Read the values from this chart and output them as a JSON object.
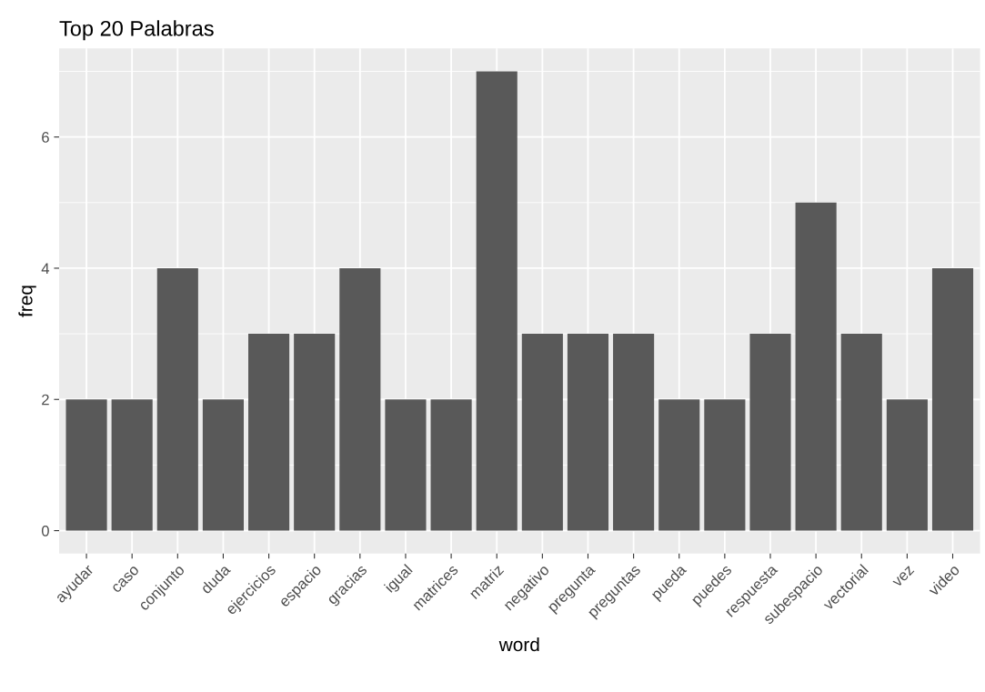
{
  "chart_data": {
    "type": "bar",
    "title": "Top 20 Palabras",
    "xlabel": "word",
    "ylabel": "freq",
    "categories": [
      "ayudar",
      "caso",
      "conjunto",
      "duda",
      "ejercicios",
      "espacio",
      "gracias",
      "igual",
      "matrices",
      "matriz",
      "negativo",
      "pregunta",
      "preguntas",
      "pueda",
      "puedes",
      "respuesta",
      "subespacio",
      "vectorial",
      "vez",
      "video"
    ],
    "values": [
      2,
      2,
      4,
      2,
      3,
      3,
      4,
      2,
      2,
      7,
      3,
      3,
      3,
      2,
      2,
      3,
      5,
      3,
      2,
      4
    ],
    "color": "#595959",
    "ylim": [
      -0.35,
      7.35
    ],
    "yticks": [
      0,
      2,
      4,
      6
    ],
    "grid": true,
    "legend": false
  }
}
